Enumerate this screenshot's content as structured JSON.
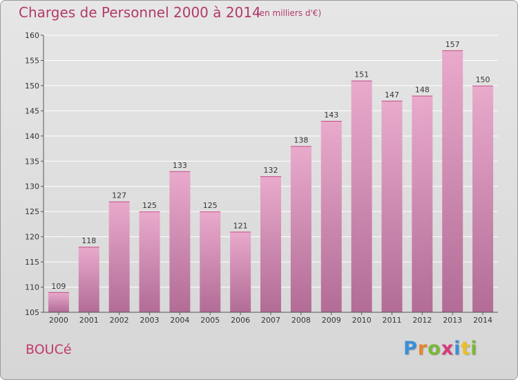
{
  "header": {
    "title": "Charges de Personnel 2000 à 2014",
    "subtitle": "(en milliers d'€)"
  },
  "footer": {
    "commune": "BOUCé",
    "logo": {
      "letters": [
        "P",
        "r",
        "o",
        "x",
        "i",
        "t",
        "i"
      ],
      "colors": [
        "#3a8fd8",
        "#e8852a",
        "#7ab83a",
        "#d83a7a",
        "#3a8fd8",
        "#e8c02a",
        "#7ab83a"
      ]
    }
  },
  "colors": {
    "bar_top": "#e9aacc",
    "bar_bottom": "#b26c96",
    "text": "#333333",
    "accent": "#b03a6a"
  },
  "chart_data": {
    "type": "bar",
    "title": "Charges de Personnel 2000 à 2014",
    "subtitle": "(en milliers d'€)",
    "xlabel": "",
    "ylabel": "",
    "categories": [
      "2000",
      "2001",
      "2002",
      "2003",
      "2004",
      "2005",
      "2006",
      "2007",
      "2008",
      "2009",
      "2010",
      "2011",
      "2012",
      "2013",
      "2014"
    ],
    "values": [
      109,
      118,
      127,
      125,
      133,
      125,
      121,
      132,
      138,
      143,
      151,
      147,
      148,
      157,
      150
    ],
    "ylim": [
      105,
      160
    ],
    "yticks": [
      105,
      110,
      115,
      120,
      125,
      130,
      135,
      140,
      145,
      150,
      155,
      160
    ],
    "grid": true,
    "data_labels": true
  }
}
